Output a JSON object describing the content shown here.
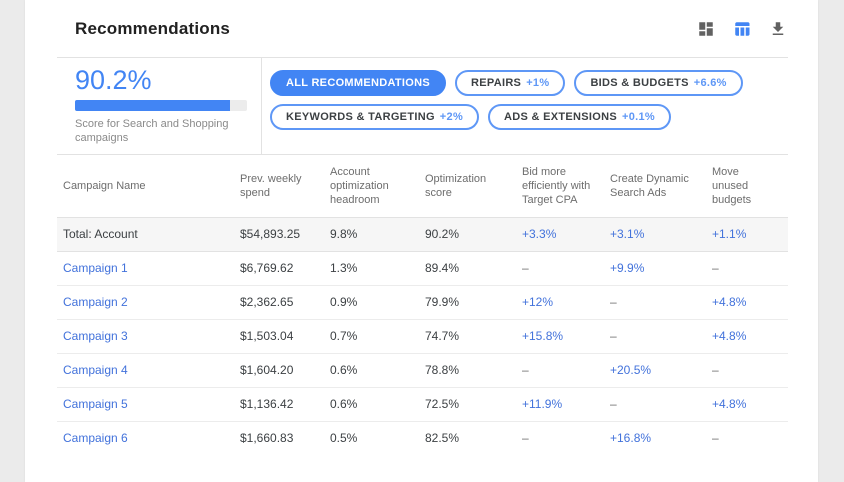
{
  "header": {
    "title": "Recommendations",
    "icons": [
      {
        "name": "card-view-icon",
        "color": "#616161"
      },
      {
        "name": "table-view-icon",
        "color": "#4285f4",
        "active": true
      },
      {
        "name": "download-icon",
        "color": "#616161"
      }
    ]
  },
  "score": {
    "value": "90.2%",
    "percent": 90.2,
    "caption": "Score for Search and Shopping campaigns"
  },
  "chips": {
    "rows": [
      [
        {
          "label": "ALL RECOMMENDATIONS",
          "delta": "",
          "active": true
        },
        {
          "label": "REPAIRS",
          "delta": "+1%",
          "active": false
        },
        {
          "label": "BIDS & BUDGETS",
          "delta": "+6.6%",
          "active": false
        }
      ],
      [
        {
          "label": "KEYWORDS & TARGETING",
          "delta": "+2%",
          "active": false
        },
        {
          "label": "ADS & EXTENSIONS",
          "delta": "+0.1%",
          "active": false
        }
      ]
    ]
  },
  "table": {
    "columns": [
      "Campaign Name",
      "Prev. weekly spend",
      "Account optimization headroom",
      "Optimization score",
      "Bid more efficiently with Target CPA",
      "Create Dynamic Search Ads",
      "Move unused budgets"
    ],
    "rows": [
      {
        "name": "Total: Account",
        "total": true,
        "cells": [
          "$54,893.25",
          "9.8%",
          "90.2%",
          "+3.3%",
          "+3.1%",
          "+1.1%"
        ]
      },
      {
        "name": "Campaign 1",
        "total": false,
        "cells": [
          "$6,769.62",
          "1.3%",
          "89.4%",
          "–",
          "+9.9%",
          "–"
        ]
      },
      {
        "name": "Campaign 2",
        "total": false,
        "cells": [
          "$2,362.65",
          "0.9%",
          "79.9%",
          "+12%",
          "–",
          "+4.8%"
        ]
      },
      {
        "name": "Campaign 3",
        "total": false,
        "cells": [
          "$1,503.04",
          "0.7%",
          "74.7%",
          "+15.8%",
          "–",
          "+4.8%"
        ]
      },
      {
        "name": "Campaign 4",
        "total": false,
        "cells": [
          "$1,604.20",
          "0.6%",
          "78.8%",
          "–",
          "+20.5%",
          "–"
        ]
      },
      {
        "name": "Campaign 5",
        "total": false,
        "cells": [
          "$1,136.42",
          "0.6%",
          "72.5%",
          "+11.9%",
          "–",
          "+4.8%"
        ]
      },
      {
        "name": "Campaign 6",
        "total": false,
        "cells": [
          "$1,660.83",
          "0.5%",
          "82.5%",
          "–",
          "+16.8%",
          "–"
        ]
      }
    ]
  },
  "colors": {
    "accent": "#4285f4",
    "chip_border": "#5e97f6",
    "link_blue": "#4272db",
    "page_bg": "#ebebeb",
    "total_row_bg": "#f6f6f6"
  }
}
